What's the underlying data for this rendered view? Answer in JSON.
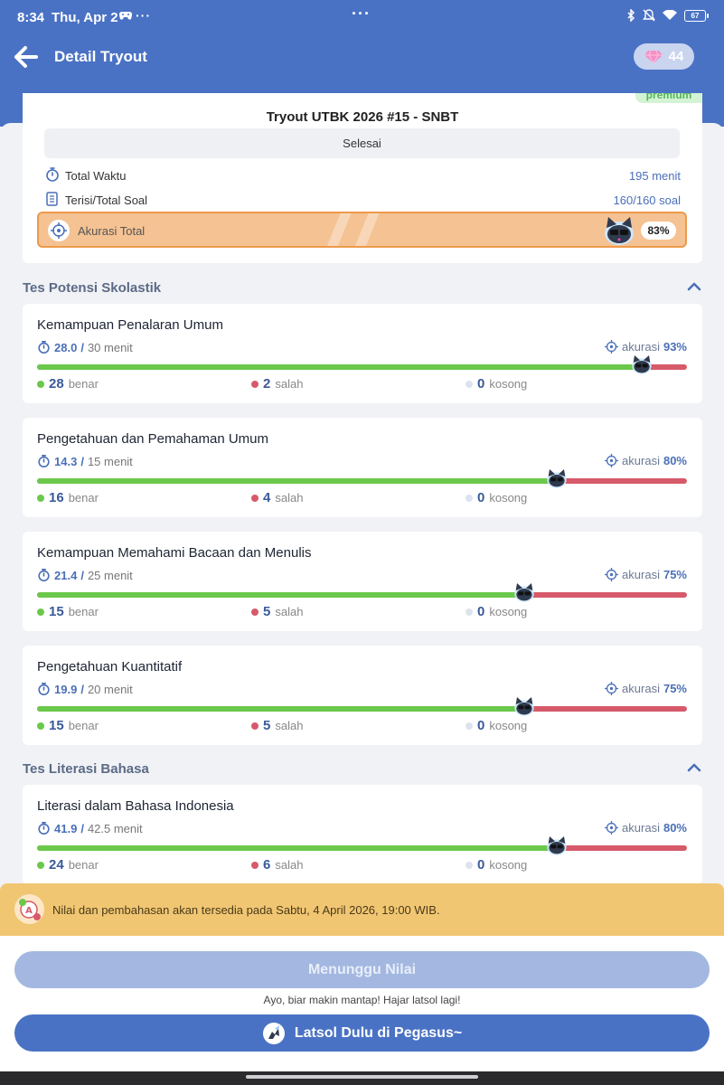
{
  "status_bar": {
    "time": "8:34",
    "date": "Thu, Apr 2",
    "battery": "67"
  },
  "header": {
    "title": "Detail Tryout",
    "gems": "44"
  },
  "summary": {
    "badge": "premium",
    "title": "Tryout UTBK 2026 #15 - SNBT",
    "status": "Selesai",
    "rows": [
      {
        "label": "Total Waktu",
        "value": "195 menit"
      },
      {
        "label": "Terisi/Total Soal",
        "value": "160/160 soal"
      }
    ],
    "accuracy_label": "Akurasi Total",
    "accuracy_value": "83%"
  },
  "sections": [
    {
      "title": "Tes Potensi Skolastik"
    },
    {
      "title": "Tes Literasi Bahasa"
    }
  ],
  "labels": {
    "accuracy": "akurasi",
    "correct": "benar",
    "wrong": "salah",
    "empty": "kosong"
  },
  "subjects": [
    {
      "name": "Kemampuan Penalaran Umum",
      "time_used": "28.0",
      "time_max": "30 menit",
      "accuracy": "93%",
      "accuracy_fraction": 0.93,
      "correct": "28",
      "wrong": "2",
      "empty": "0"
    },
    {
      "name": "Pengetahuan dan Pemahaman Umum",
      "time_used": "14.3",
      "time_max": "15 menit",
      "accuracy": "80%",
      "accuracy_fraction": 0.8,
      "correct": "16",
      "wrong": "4",
      "empty": "0"
    },
    {
      "name": "Kemampuan Memahami Bacaan dan Menulis",
      "time_used": "21.4",
      "time_max": "25 menit",
      "accuracy": "75%",
      "accuracy_fraction": 0.75,
      "correct": "15",
      "wrong": "5",
      "empty": "0"
    },
    {
      "name": "Pengetahuan Kuantitatif",
      "time_used": "19.9",
      "time_max": "20 menit",
      "accuracy": "75%",
      "accuracy_fraction": 0.75,
      "correct": "15",
      "wrong": "5",
      "empty": "0"
    },
    {
      "name": "Literasi dalam Bahasa Indonesia",
      "time_used": "41.9",
      "time_max": "42.5 menit",
      "accuracy": "80%",
      "accuracy_fraction": 0.8,
      "correct": "24",
      "wrong": "6",
      "empty": "0"
    }
  ],
  "notice": {
    "text": "Nilai dan pembahasan akan tersedia pada Sabtu, 4 April 2026, 19:00 WIB."
  },
  "actions": {
    "wait_label": "Menunggu Nilai",
    "hint": "Ayo, biar makin mantap! Hajar latsol lagi!",
    "latsol_label": "Latsol Dulu di Pegasus~"
  },
  "colors": {
    "primary": "#4a72c4",
    "correct": "#6bc84b",
    "wrong": "#d65a6a",
    "empty": "#dde3ee",
    "accuracy_bar": "#f5c293",
    "notice": "#f1c672"
  }
}
